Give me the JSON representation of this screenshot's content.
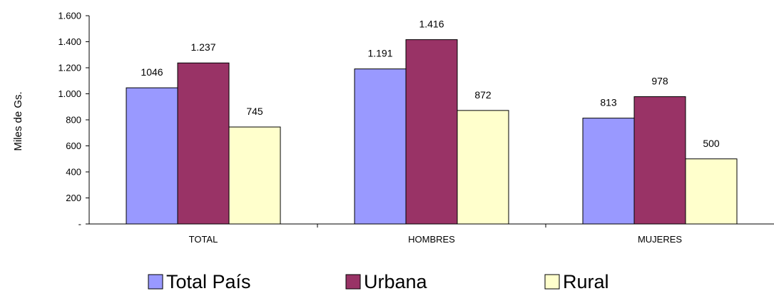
{
  "chart_data": {
    "type": "bar",
    "ylabel": "Miles de Gs.",
    "ylim": [
      0,
      1600
    ],
    "y_ticks": [
      {
        "value": 0,
        "label": "-"
      },
      {
        "value": 200,
        "label": "200"
      },
      {
        "value": 400,
        "label": "400"
      },
      {
        "value": 600,
        "label": "600"
      },
      {
        "value": 800,
        "label": "800"
      },
      {
        "value": 1000,
        "label": "1.000"
      },
      {
        "value": 1200,
        "label": "1.200"
      },
      {
        "value": 1400,
        "label": "1.400"
      },
      {
        "value": 1600,
        "label": "1.600"
      }
    ],
    "categories": [
      "TOTAL",
      "HOMBRES",
      "MUJERES"
    ],
    "series": [
      {
        "name": "Total País",
        "color": "#9999ff",
        "values": [
          1046,
          1191,
          813
        ],
        "labels": [
          "1046",
          "1.191",
          "813"
        ]
      },
      {
        "name": "Urbana",
        "color": "#993366",
        "values": [
          1237,
          1416,
          978
        ],
        "labels": [
          "1.237",
          "1.416",
          "978"
        ]
      },
      {
        "name": "Rural",
        "color": "#ffffcc",
        "values": [
          745,
          872,
          500
        ],
        "labels": [
          "745",
          "872",
          "500"
        ]
      }
    ],
    "legend_position": "bottom",
    "grid": false
  }
}
